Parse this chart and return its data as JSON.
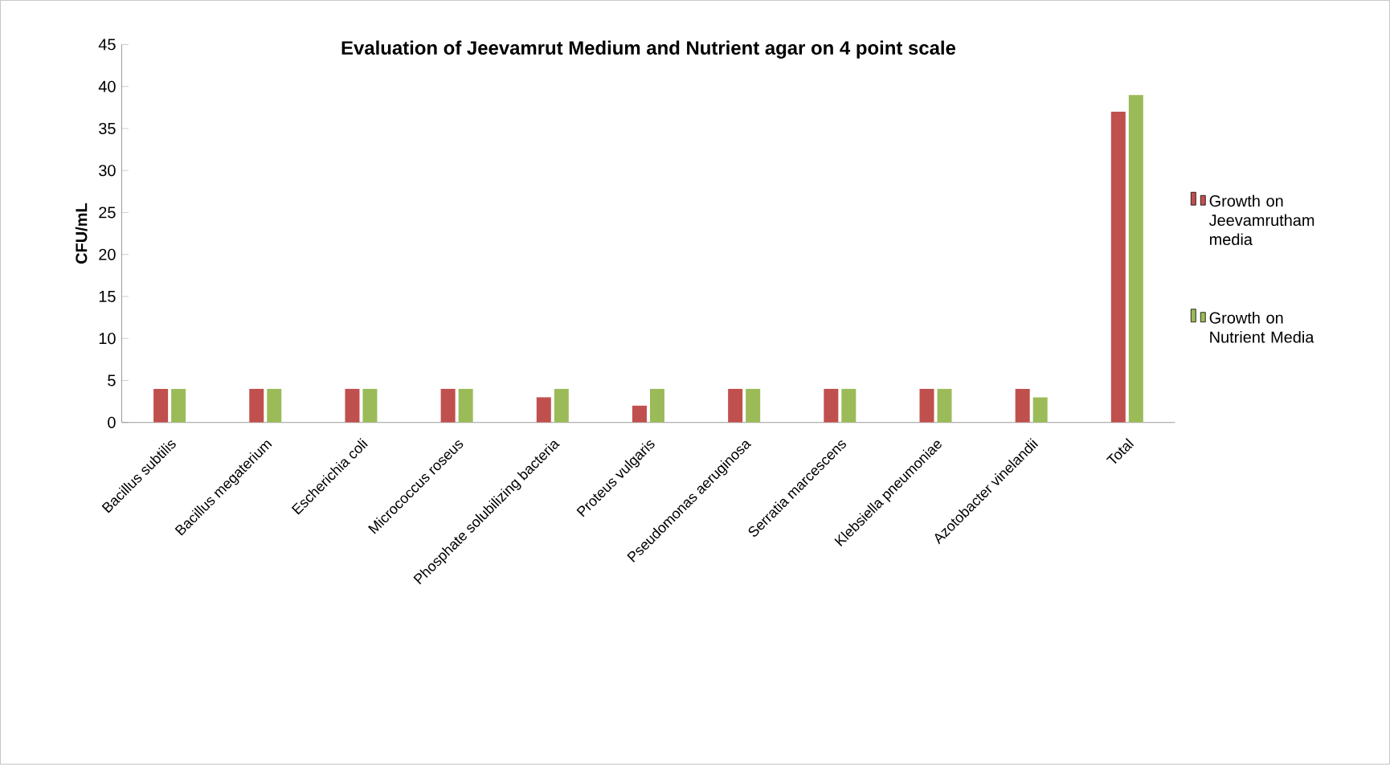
{
  "chart_data": {
    "type": "bar",
    "title": "Evaluation of Jeevamrut Medium and Nutrient agar on 4 point scale",
    "ylabel": "CFU/mL",
    "categories": [
      "Bacillus subtilis",
      "Bacillus megaterium",
      "Escherichia coli",
      "Micrococcus roseus",
      "Phosphate solubilizing bacteria",
      "Proteus vulgaris",
      "Pseudomonas aeruginosa",
      "Serratia marcescens",
      "Klebsiella pneumoniae",
      "Azotobacter vinelandii",
      "Total"
    ],
    "series": [
      {
        "name": "Growth on Jeevamrutham media",
        "color": "#c0504d",
        "values": [
          4,
          4,
          4,
          4,
          3,
          2,
          4,
          4,
          4,
          4,
          37
        ]
      },
      {
        "name": "Growth on Nutrient Media",
        "color": "#9bbb59",
        "values": [
          4,
          4,
          4,
          4,
          4,
          4,
          4,
          4,
          4,
          3,
          39
        ]
      }
    ],
    "ylim": [
      0,
      45
    ],
    "yticks": [
      0,
      5,
      10,
      15,
      20,
      25,
      30,
      35,
      40,
      45
    ],
    "grid": false,
    "legend": "right"
  }
}
